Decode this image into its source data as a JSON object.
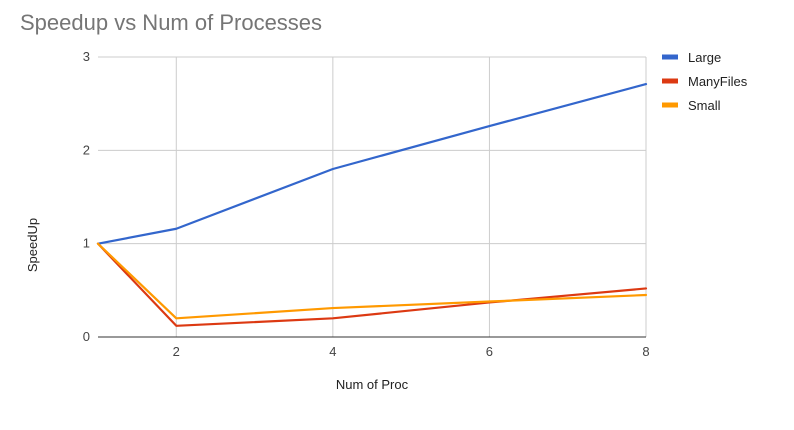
{
  "chart_data": {
    "type": "line",
    "title": "Speedup vs Num of Processes",
    "xlabel": "Num of Proc",
    "ylabel": "SpeedUp",
    "x": [
      1,
      2,
      4,
      6,
      8
    ],
    "xticks": [
      "2",
      "4",
      "6",
      "8"
    ],
    "yticks": [
      "0",
      "1",
      "2",
      "3"
    ],
    "xlim": [
      1,
      8
    ],
    "ylim": [
      0,
      3
    ],
    "grid": true,
    "legend_position": "top-right",
    "series": [
      {
        "name": "Large",
        "color": "#3366cc",
        "values": [
          1.0,
          1.16,
          1.8,
          2.26,
          2.71
        ]
      },
      {
        "name": "ManyFiles",
        "color": "#dc3912",
        "values": [
          1.0,
          0.12,
          0.2,
          0.37,
          0.52
        ]
      },
      {
        "name": "Small",
        "color": "#ff9900",
        "values": [
          1.0,
          0.2,
          0.31,
          0.38,
          0.45
        ]
      }
    ]
  }
}
